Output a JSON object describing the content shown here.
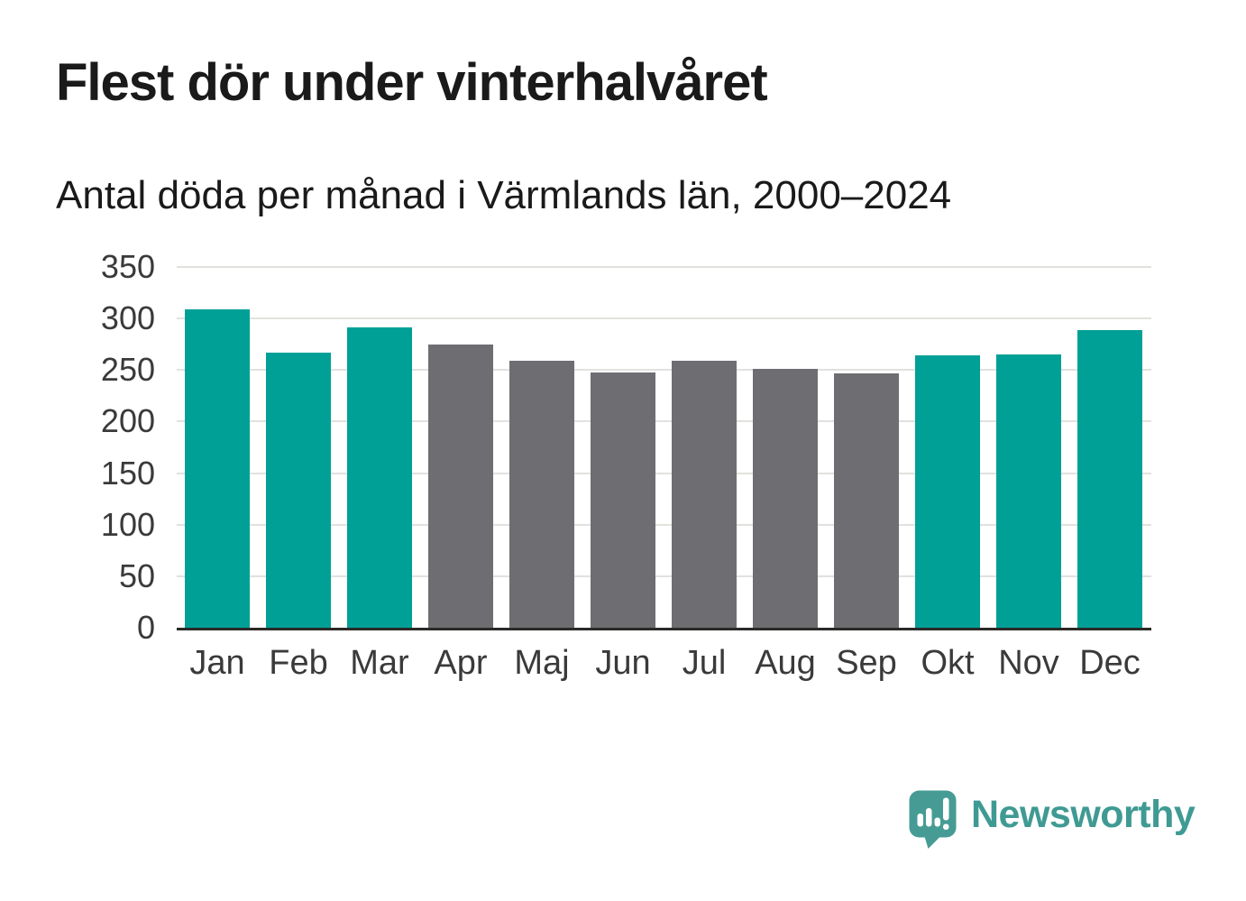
{
  "title": "Flest dör under vinterhalvåret",
  "subtitle": "Antal döda per månad i Värmlands län, 2000–2024",
  "chart_data": {
    "type": "bar",
    "categories": [
      "Jan",
      "Feb",
      "Mar",
      "Apr",
      "Maj",
      "Jun",
      "Jul",
      "Aug",
      "Sep",
      "Okt",
      "Nov",
      "Dec"
    ],
    "values": [
      309,
      267,
      291,
      275,
      259,
      248,
      259,
      251,
      247,
      264,
      265,
      289
    ],
    "bar_colors": [
      "teal",
      "teal",
      "teal",
      "gray",
      "gray",
      "gray",
      "gray",
      "gray",
      "gray",
      "teal",
      "teal",
      "teal"
    ],
    "colors": {
      "teal": "#00a096",
      "gray": "#6e6d72"
    },
    "title": "Flest dör under vinterhalvåret",
    "subtitle": "Antal döda per månad i Värmlands län, 2000–2024",
    "xlabel": "",
    "ylabel": "",
    "ylim": [
      0,
      350
    ],
    "yticks": [
      0,
      50,
      100,
      150,
      200,
      250,
      300,
      350
    ],
    "grid": "horizontal",
    "legend": "none"
  },
  "branding": {
    "logo_text": "Newsworthy",
    "logo_text_color": "#3f9a93",
    "logo_mark_color": "#469c95"
  }
}
